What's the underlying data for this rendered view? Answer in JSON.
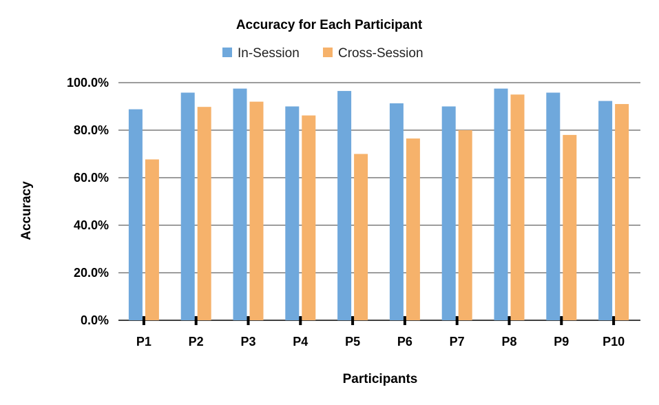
{
  "chart_data": {
    "type": "bar",
    "title": "Accuracy for Each Participant",
    "xlabel": "Participants",
    "ylabel": "Accuracy",
    "categories": [
      "P1",
      "P2",
      "P3",
      "P4",
      "P5",
      "P6",
      "P7",
      "P8",
      "P9",
      "P10"
    ],
    "series": [
      {
        "name": "In-Session",
        "color": "#6fa8dc",
        "values": [
          88.8,
          95.8,
          97.5,
          90.0,
          96.5,
          91.3,
          90.0,
          97.5,
          95.8,
          92.3
        ]
      },
      {
        "name": "Cross-Session",
        "color": "#f6b26b",
        "values": [
          67.7,
          89.8,
          92.0,
          86.2,
          70.0,
          76.5,
          80.0,
          95.0,
          78.0,
          91.0
        ]
      }
    ],
    "ylim": [
      0,
      100
    ],
    "yticks": [
      "0.0%",
      "20.0%",
      "40.0%",
      "60.0%",
      "80.0%",
      "100.0%"
    ],
    "ytick_values": [
      0,
      20,
      40,
      60,
      80,
      100
    ],
    "grid": true,
    "legend_position": "top-center"
  }
}
